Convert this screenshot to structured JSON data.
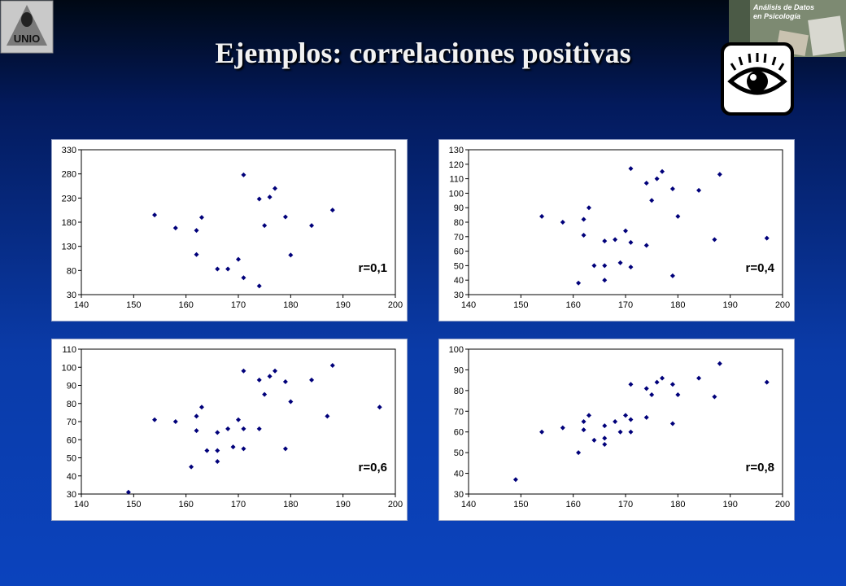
{
  "header": {
    "title": "Ejemplos: correlaciones positivas",
    "logo_left_text": "UNIO",
    "logo_right_line1": "Análisis de Datos",
    "logo_right_line2": "en Psicología"
  },
  "colors": {
    "marker": "#00007a",
    "background_top": "#000814",
    "background_bottom": "#0b43bd"
  },
  "icons": {
    "eye": "eye-icon"
  },
  "chart_data": [
    {
      "type": "scatter",
      "annotation": "r=0,1",
      "xlim": [
        140,
        200
      ],
      "ylim": [
        30,
        330
      ],
      "xticks": [
        140,
        150,
        160,
        170,
        180,
        190,
        200
      ],
      "yticks": [
        30,
        80,
        130,
        180,
        230,
        280,
        330
      ],
      "points": [
        [
          154,
          195
        ],
        [
          158,
          168
        ],
        [
          162,
          163
        ],
        [
          162,
          113
        ],
        [
          163,
          190
        ],
        [
          166,
          83
        ],
        [
          168,
          83
        ],
        [
          170,
          103
        ],
        [
          171,
          278
        ],
        [
          171,
          65
        ],
        [
          174,
          48
        ],
        [
          174,
          228
        ],
        [
          175,
          173
        ],
        [
          176,
          232
        ],
        [
          177,
          250
        ],
        [
          179,
          191
        ],
        [
          180,
          112
        ],
        [
          184,
          173
        ],
        [
          188,
          205
        ]
      ]
    },
    {
      "type": "scatter",
      "annotation": "r=0,4",
      "xlim": [
        140,
        200
      ],
      "ylim": [
        30,
        130
      ],
      "xticks": [
        140,
        150,
        160,
        170,
        180,
        190,
        200
      ],
      "yticks": [
        30,
        40,
        50,
        60,
        70,
        80,
        90,
        100,
        110,
        120,
        130
      ],
      "points": [
        [
          154,
          84
        ],
        [
          158,
          80
        ],
        [
          161,
          38
        ],
        [
          162,
          82
        ],
        [
          162,
          71
        ],
        [
          163,
          90
        ],
        [
          164,
          50
        ],
        [
          166,
          67
        ],
        [
          166,
          50
        ],
        [
          166,
          40
        ],
        [
          168,
          68
        ],
        [
          169,
          52
        ],
        [
          170,
          74
        ],
        [
          171,
          117
        ],
        [
          171,
          66
        ],
        [
          171,
          49
        ],
        [
          174,
          107
        ],
        [
          174,
          64
        ],
        [
          175,
          95
        ],
        [
          176,
          110
        ],
        [
          177,
          115
        ],
        [
          179,
          103
        ],
        [
          179,
          43
        ],
        [
          180,
          84
        ],
        [
          184,
          102
        ],
        [
          187,
          68
        ],
        [
          188,
          113
        ],
        [
          197,
          69
        ]
      ]
    },
    {
      "type": "scatter",
      "annotation": "r=0,6",
      "xlim": [
        140,
        200
      ],
      "ylim": [
        30,
        110
      ],
      "xticks": [
        140,
        150,
        160,
        170,
        180,
        190,
        200
      ],
      "yticks": [
        30,
        40,
        50,
        60,
        70,
        80,
        90,
        100,
        110
      ],
      "points": [
        [
          149,
          31
        ],
        [
          154,
          71
        ],
        [
          158,
          70
        ],
        [
          161,
          45
        ],
        [
          162,
          73
        ],
        [
          162,
          65
        ],
        [
          163,
          78
        ],
        [
          164,
          54
        ],
        [
          166,
          64
        ],
        [
          166,
          54
        ],
        [
          166,
          48
        ],
        [
          168,
          66
        ],
        [
          169,
          56
        ],
        [
          170,
          71
        ],
        [
          171,
          98
        ],
        [
          171,
          66
        ],
        [
          171,
          55
        ],
        [
          174,
          93
        ],
        [
          174,
          66
        ],
        [
          175,
          85
        ],
        [
          176,
          95
        ],
        [
          177,
          98
        ],
        [
          179,
          92
        ],
        [
          179,
          55
        ],
        [
          180,
          81
        ],
        [
          184,
          93
        ],
        [
          187,
          73
        ],
        [
          188,
          101
        ],
        [
          197,
          78
        ]
      ]
    },
    {
      "type": "scatter",
      "annotation": "r=0,8",
      "xlim": [
        140,
        200
      ],
      "ylim": [
        30,
        100
      ],
      "xticks": [
        140,
        150,
        160,
        170,
        180,
        190,
        200
      ],
      "yticks": [
        30,
        40,
        50,
        60,
        70,
        80,
        90,
        100
      ],
      "points": [
        [
          149,
          37
        ],
        [
          154,
          60
        ],
        [
          158,
          62
        ],
        [
          161,
          50
        ],
        [
          162,
          65
        ],
        [
          162,
          61
        ],
        [
          163,
          68
        ],
        [
          164,
          56
        ],
        [
          166,
          63
        ],
        [
          166,
          57
        ],
        [
          166,
          54
        ],
        [
          168,
          65
        ],
        [
          169,
          60
        ],
        [
          170,
          68
        ],
        [
          171,
          83
        ],
        [
          171,
          66
        ],
        [
          171,
          60
        ],
        [
          174,
          81
        ],
        [
          174,
          67
        ],
        [
          175,
          78
        ],
        [
          176,
          84
        ],
        [
          177,
          86
        ],
        [
          179,
          83
        ],
        [
          179,
          64
        ],
        [
          180,
          78
        ],
        [
          184,
          86
        ],
        [
          187,
          77
        ],
        [
          188,
          93
        ],
        [
          197,
          84
        ]
      ]
    }
  ]
}
